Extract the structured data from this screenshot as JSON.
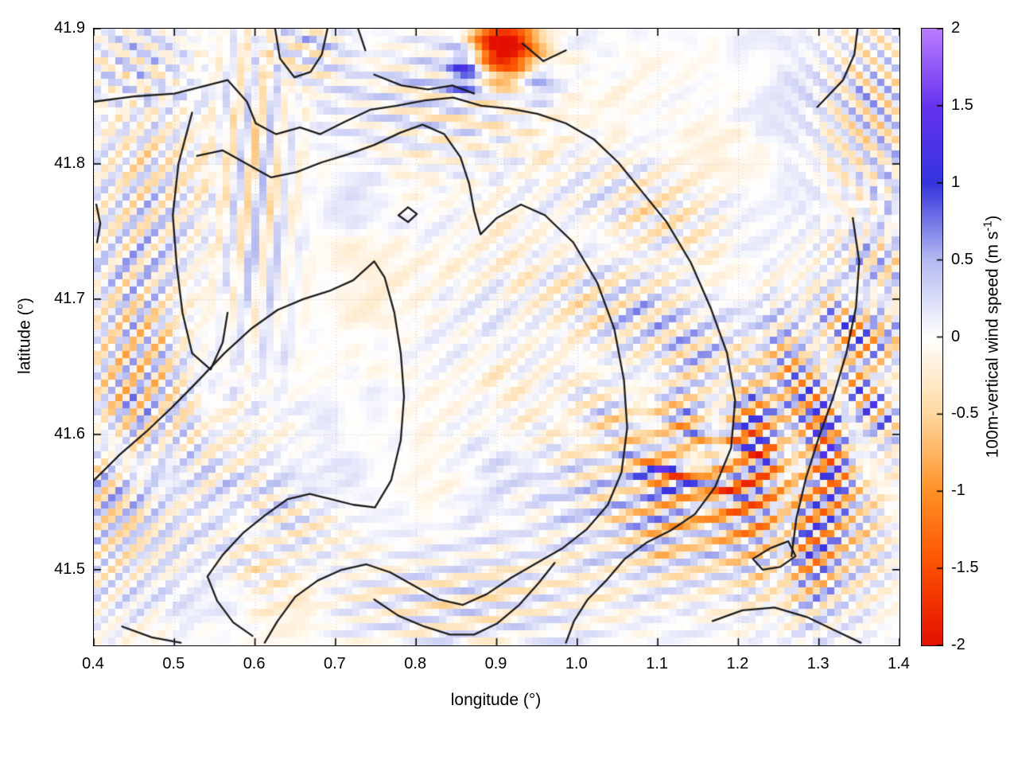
{
  "chart_data": {
    "type": "heatmap",
    "title": "",
    "xlabel": "longitude (°)",
    "ylabel": "latitude (°)",
    "xlim": [
      0.4,
      1.4
    ],
    "ylim": [
      41.444,
      41.9
    ],
    "grid": true,
    "x_ticks": [
      {
        "value": 0.4,
        "label": "0.4"
      },
      {
        "value": 0.5,
        "label": "0.5"
      },
      {
        "value": 0.6,
        "label": "0.6"
      },
      {
        "value": 0.7,
        "label": "0.7"
      },
      {
        "value": 0.8,
        "label": "0.8"
      },
      {
        "value": 0.9,
        "label": "0.9"
      },
      {
        "value": 1.0,
        "label": "1.0"
      },
      {
        "value": 1.1,
        "label": "1.1"
      },
      {
        "value": 1.2,
        "label": "1.2"
      },
      {
        "value": 1.3,
        "label": "1.3"
      },
      {
        "value": 1.4,
        "label": "1.4"
      }
    ],
    "y_ticks": [
      {
        "value": 41.9,
        "label": "41.9"
      },
      {
        "value": 41.8,
        "label": "41.8"
      },
      {
        "value": 41.7,
        "label": "41.7"
      },
      {
        "value": 41.6,
        "label": "41.6"
      },
      {
        "value": 41.5,
        "label": "41.5"
      }
    ],
    "colorbar": {
      "label": "100m-vertical wind speed (m s-1)",
      "label_prefix": "100m-vertical wind speed (m s",
      "label_sup": "-1",
      "label_suffix": ")",
      "min": -2,
      "max": 2,
      "ticks": [
        {
          "value": 2,
          "label": "2"
        },
        {
          "value": 1.5,
          "label": "1.5"
        },
        {
          "value": 1,
          "label": "1"
        },
        {
          "value": 0.5,
          "label": "0.5"
        },
        {
          "value": 0,
          "label": "0"
        },
        {
          "value": -0.5,
          "label": "-0.5"
        },
        {
          "value": -1,
          "label": "-1"
        },
        {
          "value": -1.5,
          "label": "-1.5"
        },
        {
          "value": -2,
          "label": "-2"
        }
      ],
      "stops": [
        [
          -2.0,
          "#e31000"
        ],
        [
          -1.5,
          "#fb4e00"
        ],
        [
          -1.0,
          "#ff9125"
        ],
        [
          -0.5,
          "#ffd8a0"
        ],
        [
          0.0,
          "#ffffff"
        ],
        [
          0.5,
          "#b4baf0"
        ],
        [
          1.0,
          "#3434dd"
        ],
        [
          1.5,
          "#6633ee"
        ],
        [
          2.0,
          "#bb7dff"
        ]
      ],
      "grid_color": "rgba(130,130,130,0.45)"
    },
    "contours": [
      [
        [
          0.625,
          41.9
        ],
        [
          0.631,
          41.878
        ],
        [
          0.649,
          41.864
        ],
        [
          0.669,
          41.868
        ],
        [
          0.683,
          41.881
        ],
        [
          0.69,
          41.9
        ]
      ],
      [
        [
          0.728,
          41.9
        ],
        [
          0.737,
          41.884
        ]
      ],
      [
        [
          0.932,
          41.889
        ],
        [
          0.958,
          41.876
        ],
        [
          0.986,
          41.884
        ]
      ],
      [
        [
          1.298,
          41.842
        ],
        [
          1.33,
          41.862
        ],
        [
          1.344,
          41.881
        ],
        [
          1.348,
          41.9
        ]
      ],
      [
        [
          0.4,
          41.846
        ],
        [
          0.452,
          41.85
        ],
        [
          0.5,
          41.852
        ],
        [
          0.54,
          41.858
        ],
        [
          0.566,
          41.862
        ],
        [
          0.59,
          41.846
        ],
        [
          0.601,
          41.83
        ],
        [
          0.626,
          41.822
        ],
        [
          0.656,
          41.827
        ],
        [
          0.681,
          41.822
        ],
        [
          0.711,
          41.831
        ],
        [
          0.743,
          41.84
        ],
        [
          0.776,
          41.843
        ],
        [
          0.811,
          41.847
        ],
        [
          0.846,
          41.849
        ],
        [
          0.881,
          41.843
        ],
        [
          0.916,
          41.841
        ],
        [
          0.951,
          41.837
        ],
        [
          0.986,
          41.83
        ],
        [
          1.021,
          41.818
        ],
        [
          1.051,
          41.801
        ],
        [
          1.081,
          41.779
        ],
        [
          1.111,
          41.757
        ],
        [
          1.141,
          41.727
        ],
        [
          1.166,
          41.693
        ],
        [
          1.186,
          41.66
        ],
        [
          1.196,
          41.625
        ],
        [
          1.191,
          41.59
        ],
        [
          1.171,
          41.561
        ],
        [
          1.146,
          41.541
        ],
        [
          1.116,
          41.529
        ],
        [
          1.086,
          41.52
        ],
        [
          1.059,
          41.508
        ],
        [
          1.036,
          41.492
        ],
        [
          1.013,
          41.478
        ],
        [
          0.996,
          41.462
        ],
        [
          0.986,
          41.446
        ]
      ],
      [
        [
          0.528,
          41.806
        ],
        [
          0.56,
          41.81
        ],
        [
          0.59,
          41.8
        ],
        [
          0.62,
          41.79
        ],
        [
          0.652,
          41.794
        ],
        [
          0.682,
          41.801
        ],
        [
          0.715,
          41.807
        ],
        [
          0.748,
          41.814
        ],
        [
          0.78,
          41.823
        ],
        [
          0.808,
          41.829
        ],
        [
          0.835,
          41.822
        ],
        [
          0.855,
          41.805
        ],
        [
          0.866,
          41.785
        ],
        [
          0.872,
          41.765
        ],
        [
          0.88,
          41.748
        ],
        [
          0.9,
          41.76
        ],
        [
          0.93,
          41.77
        ],
        [
          0.96,
          41.762
        ],
        [
          0.995,
          41.742
        ],
        [
          1.025,
          41.712
        ],
        [
          1.046,
          41.678
        ],
        [
          1.058,
          41.64
        ],
        [
          1.062,
          41.605
        ],
        [
          1.055,
          41.572
        ],
        [
          1.038,
          41.548
        ],
        [
          1.012,
          41.53
        ],
        [
          0.982,
          41.516
        ],
        [
          0.95,
          41.505
        ],
        [
          0.918,
          41.494
        ],
        [
          0.888,
          41.482
        ],
        [
          0.858,
          41.474
        ],
        [
          0.828,
          41.478
        ],
        [
          0.798,
          41.488
        ],
        [
          0.768,
          41.498
        ],
        [
          0.738,
          41.504
        ],
        [
          0.708,
          41.5
        ],
        [
          0.678,
          41.492
        ],
        [
          0.65,
          41.48
        ],
        [
          0.628,
          41.462
        ],
        [
          0.612,
          41.446
        ]
      ],
      [
        [
          0.522,
          41.838
        ],
        [
          0.505,
          41.8
        ],
        [
          0.498,
          41.762
        ],
        [
          0.503,
          41.724
        ],
        [
          0.51,
          41.69
        ],
        [
          0.522,
          41.66
        ],
        [
          0.545,
          41.648
        ],
        [
          0.56,
          41.668
        ],
        [
          0.566,
          41.69
        ]
      ],
      [
        [
          0.4,
          41.566
        ],
        [
          0.432,
          41.585
        ],
        [
          0.465,
          41.602
        ],
        [
          0.497,
          41.62
        ],
        [
          0.53,
          41.64
        ],
        [
          0.562,
          41.66
        ],
        [
          0.595,
          41.678
        ],
        [
          0.628,
          41.692
        ],
        [
          0.66,
          41.7
        ],
        [
          0.692,
          41.706
        ],
        [
          0.722,
          41.714
        ],
        [
          0.748,
          41.728
        ],
        [
          0.761,
          41.716
        ],
        [
          0.773,
          41.69
        ],
        [
          0.781,
          41.66
        ],
        [
          0.785,
          41.628
        ],
        [
          0.781,
          41.596
        ],
        [
          0.769,
          41.566
        ],
        [
          0.749,
          41.546
        ],
        [
          0.722,
          41.548
        ],
        [
          0.695,
          41.552
        ],
        [
          0.668,
          41.556
        ],
        [
          0.64,
          41.552
        ],
        [
          0.612,
          41.54
        ],
        [
          0.585,
          41.527
        ],
        [
          0.56,
          41.511
        ],
        [
          0.541,
          41.495
        ],
        [
          0.553,
          41.477
        ],
        [
          0.573,
          41.461
        ],
        [
          0.597,
          41.451
        ]
      ],
      [
        [
          0.748,
          41.478
        ],
        [
          0.778,
          41.466
        ],
        [
          0.81,
          41.458
        ],
        [
          0.842,
          41.452
        ],
        [
          0.872,
          41.452
        ],
        [
          0.9,
          41.46
        ],
        [
          0.928,
          41.474
        ],
        [
          0.952,
          41.49
        ],
        [
          0.972,
          41.505
        ]
      ],
      [
        [
          1.342,
          41.76
        ],
        [
          1.35,
          41.728
        ],
        [
          1.346,
          41.694
        ],
        [
          1.334,
          41.66
        ],
        [
          1.318,
          41.628
        ],
        [
          1.3,
          41.598
        ],
        [
          1.284,
          41.568
        ],
        [
          1.272,
          41.538
        ],
        [
          1.266,
          41.51
        ]
      ],
      [
        [
          1.168,
          41.462
        ],
        [
          1.205,
          41.47
        ],
        [
          1.245,
          41.472
        ],
        [
          1.285,
          41.465
        ],
        [
          1.32,
          41.455
        ],
        [
          1.352,
          41.446
        ]
      ],
      [
        [
          1.218,
          41.508
        ],
        [
          1.24,
          41.516
        ],
        [
          1.262,
          41.521
        ],
        [
          1.271,
          41.51
        ],
        [
          1.252,
          41.502
        ],
        [
          1.23,
          41.5
        ],
        [
          1.218,
          41.508
        ]
      ],
      [
        [
          0.403,
          41.77
        ],
        [
          0.408,
          41.756
        ],
        [
          0.404,
          41.742
        ]
      ],
      [
        [
          0.778,
          41.762
        ],
        [
          0.79,
          41.768
        ],
        [
          0.801,
          41.763
        ],
        [
          0.79,
          41.757
        ],
        [
          0.778,
          41.762
        ]
      ],
      [
        [
          0.748,
          41.866
        ],
        [
          0.782,
          41.858
        ],
        [
          0.815,
          41.855
        ],
        [
          0.845,
          41.858
        ],
        [
          0.872,
          41.852
        ]
      ],
      [
        [
          0.435,
          41.458
        ],
        [
          0.472,
          41.45
        ],
        [
          0.508,
          41.446
        ]
      ]
    ],
    "field": {
      "seed": 7,
      "nx": 112,
      "ny": 86,
      "noise": [
        {
          "scale": 0.09,
          "amp": 0.16
        },
        {
          "scale": 0.03,
          "amp": 0.13
        }
      ],
      "features": [
        {
          "c": [
            1.14,
            41.555
          ],
          "s": [
            0.105,
            0.05
          ],
          "wl": 30,
          "ang": 75,
          "amp": 1.0,
          "ph": 0.0
        },
        {
          "c": [
            1.25,
            41.6
          ],
          "s": [
            0.09,
            0.05
          ],
          "wl": 26,
          "ang": 62,
          "amp": 0.95,
          "ph": 1.6
        },
        {
          "c": [
            1.3,
            41.515
          ],
          "s": [
            0.055,
            0.04
          ],
          "wl": 25,
          "ang": 58,
          "amp": 0.9,
          "ph": 2.6
        },
        {
          "c": [
            1.2,
            41.545
          ],
          "s": [
            0.07,
            0.04
          ],
          "wl": 0,
          "ang": 0,
          "amp": -0.45,
          "ph": 0
        },
        {
          "c": [
            1.155,
            41.578
          ],
          "s": [
            0.045,
            0.015
          ],
          "wl": 22,
          "ang": 85,
          "amp": 0.85,
          "ph": 0.2
        },
        {
          "c": [
            1.33,
            41.645
          ],
          "s": [
            0.06,
            0.06
          ],
          "wl": 24,
          "ang": 45,
          "amp": 0.75,
          "ph": 0.8
        },
        {
          "c": [
            1.37,
            41.84
          ],
          "s": [
            0.05,
            0.05
          ],
          "wl": 26,
          "ang": 135,
          "amp": 0.7,
          "ph": 0.4
        },
        {
          "c": [
            1.38,
            41.7
          ],
          "s": [
            0.04,
            0.06
          ],
          "wl": 26,
          "ang": 30,
          "amp": 0.55,
          "ph": 1.9
        },
        {
          "c": [
            0.47,
            41.77
          ],
          "s": [
            0.055,
            0.065
          ],
          "wl": 28,
          "ang": 40,
          "amp": 0.6,
          "ph": 0.3
        },
        {
          "c": [
            0.455,
            41.635
          ],
          "s": [
            0.05,
            0.055
          ],
          "wl": 26,
          "ang": 35,
          "amp": 0.75,
          "ph": 1.3
        },
        {
          "c": [
            0.425,
            41.53
          ],
          "s": [
            0.05,
            0.05
          ],
          "wl": 26,
          "ang": 48,
          "amp": 0.65,
          "ph": 2.9
        },
        {
          "c": [
            0.6,
            41.79
          ],
          "s": [
            0.035,
            0.085
          ],
          "wl": 30,
          "ang": 8,
          "amp": 0.55,
          "ph": 0.6
        },
        {
          "c": [
            0.83,
            41.845
          ],
          "s": [
            0.09,
            0.035
          ],
          "wl": 26,
          "ang": 100,
          "amp": 0.5,
          "ph": 1.1
        },
        {
          "c": [
            0.905,
            41.888
          ],
          "s": [
            0.028,
            0.013
          ],
          "wl": 0,
          "ang": 0,
          "amp": -2.0,
          "ph": 0
        },
        {
          "c": [
            0.935,
            41.879
          ],
          "s": [
            0.03,
            0.016
          ],
          "wl": 0,
          "ang": 0,
          "amp": -0.8,
          "ph": 0
        },
        {
          "c": [
            0.862,
            41.873
          ],
          "s": [
            0.016,
            0.014
          ],
          "wl": 0,
          "ang": 0,
          "amp": 1.2,
          "ph": 0
        },
        {
          "c": [
            0.952,
            41.863
          ],
          "s": [
            0.018,
            0.013
          ],
          "wl": 0,
          "ang": 0,
          "amp": 0.9,
          "ph": 0
        },
        {
          "c": [
            0.98,
            41.7
          ],
          "s": [
            0.13,
            0.1
          ],
          "wl": 34,
          "ang": 50,
          "amp": 0.28,
          "ph": 0.9
        },
        {
          "c": [
            0.85,
            41.475
          ],
          "s": [
            0.11,
            0.03
          ],
          "wl": 28,
          "ang": 80,
          "amp": 0.5,
          "ph": 1.8
        },
        {
          "c": [
            0.56,
            41.565
          ],
          "s": [
            0.07,
            0.05
          ],
          "wl": 30,
          "ang": 55,
          "amp": 0.35,
          "ph": 0.5
        },
        {
          "c": [
            1.09,
            41.71
          ],
          "s": [
            0.07,
            0.07
          ],
          "wl": 30,
          "ang": 60,
          "amp": 0.45,
          "ph": 2.3
        },
        {
          "c": [
            0.45,
            41.875
          ],
          "s": [
            0.05,
            0.025
          ],
          "wl": 24,
          "ang": 120,
          "amp": 0.5,
          "ph": 1.2
        },
        {
          "c": [
            0.66,
            41.885
          ],
          "s": [
            0.04,
            0.02
          ],
          "wl": 24,
          "ang": 110,
          "amp": 0.55,
          "ph": 2.0
        },
        {
          "c": [
            0.64,
            41.52
          ],
          "s": [
            0.05,
            0.03
          ],
          "wl": 26,
          "ang": 70,
          "amp": 0.45,
          "ph": 1.4
        }
      ]
    }
  }
}
